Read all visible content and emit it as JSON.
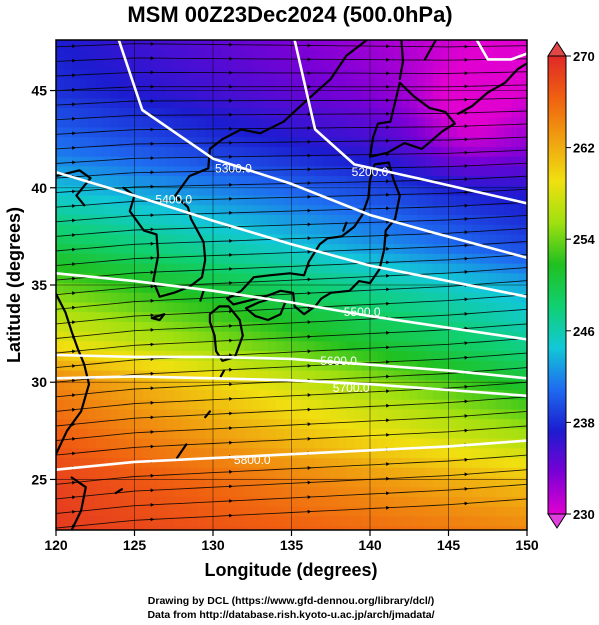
{
  "chart_data": {
    "type": "heatmap",
    "title": "MSM 00Z23Dec2024 (500.0hPa)",
    "xlabel": "Longitude (degrees)",
    "ylabel": "Latitude  (degrees)",
    "xlim": [
      120,
      150
    ],
    "ylim": [
      22.4,
      47.6
    ],
    "x_ticks": [
      "120",
      "125",
      "130",
      "135",
      "140",
      "145",
      "150"
    ],
    "y_ticks": [
      "25",
      "30",
      "35",
      "40",
      "45"
    ],
    "grid": true,
    "colorbar": {
      "min": 230,
      "max": 270,
      "ticks": [
        "230",
        "238",
        "246",
        "254",
        "262",
        "270"
      ],
      "colors": [
        "#e000d0",
        "#7a00d6",
        "#1c1cd0",
        "#1e6cf0",
        "#12c8d6",
        "#10d070",
        "#20c020",
        "#a0e010",
        "#f0e010",
        "#f0a010",
        "#f06010",
        "#e02828"
      ]
    },
    "temperature_field_rows": {
      "note_lat": [
        47.6,
        45,
        42,
        40,
        37,
        35,
        32,
        30,
        27,
        25,
        22.4
      ],
      "values_at_125": [
        236,
        237,
        240,
        243,
        248,
        252,
        257,
        262,
        265,
        267,
        268
      ],
      "values_at_145": [
        231,
        232,
        235,
        238,
        241,
        245,
        249,
        253,
        258,
        262,
        265
      ]
    },
    "contours": [
      {
        "label": "5200.0",
        "points": [
          [
            135.2,
            47.6
          ],
          [
            136.5,
            43
          ],
          [
            139,
            41.2
          ],
          [
            143,
            40.5
          ],
          [
            150,
            39.2
          ]
        ]
      },
      {
        "label": "5300.0",
        "points": [
          [
            124,
            47.6
          ],
          [
            125.5,
            44
          ],
          [
            130,
            41.5
          ],
          [
            135,
            40.2
          ],
          [
            140,
            38.6
          ],
          [
            144,
            37.7
          ],
          [
            150,
            36.4
          ]
        ]
      },
      {
        "label": "5400.0",
        "points": [
          [
            120,
            40.8
          ],
          [
            125,
            39.6
          ],
          [
            130,
            38.3
          ],
          [
            135,
            37.1
          ],
          [
            140,
            36
          ],
          [
            145,
            35.2
          ],
          [
            150,
            34.4
          ]
        ]
      },
      {
        "label": "5500.0",
        "points": [
          [
            120,
            35.6
          ],
          [
            125,
            35.2
          ],
          [
            130,
            34.7
          ],
          [
            135,
            34.1
          ],
          [
            140,
            33.4
          ],
          [
            145,
            32.8
          ],
          [
            150,
            32.2
          ]
        ]
      },
      {
        "label": "5600.0",
        "points": [
          [
            120,
            31.4
          ],
          [
            125,
            31.3
          ],
          [
            130,
            31.3
          ],
          [
            135,
            31.2
          ],
          [
            140,
            30.9
          ],
          [
            145,
            30.6
          ],
          [
            150,
            30.2
          ]
        ]
      },
      {
        "label": "5700.0",
        "points": [
          [
            120,
            30.2
          ],
          [
            125,
            30.3
          ],
          [
            130,
            30.2
          ],
          [
            135,
            30.1
          ],
          [
            140,
            29.9
          ],
          [
            145,
            29.6
          ],
          [
            150,
            29.3
          ]
        ]
      },
      {
        "label": "5800.0",
        "points": [
          [
            120,
            25.5
          ],
          [
            125,
            25.9
          ],
          [
            130,
            26.1
          ],
          [
            135,
            26.3
          ],
          [
            140,
            26.5
          ],
          [
            145,
            26.7
          ],
          [
            150,
            27
          ]
        ]
      },
      {
        "label": "",
        "points": [
          [
            146.8,
            47.6
          ],
          [
            147.5,
            46.6
          ],
          [
            149,
            46.6
          ],
          [
            150,
            46.9
          ]
        ]
      }
    ],
    "contour_labels": [
      {
        "text": "5200.0",
        "lon": 140,
        "lat": 40.8
      },
      {
        "text": "5300.0",
        "lon": 131.3,
        "lat": 41
      },
      {
        "text": "5400.0",
        "lon": 127.5,
        "lat": 39.4
      },
      {
        "text": "5500.0",
        "lon": 139.5,
        "lat": 33.6
      },
      {
        "text": "5600.0",
        "lon": 138,
        "lat": 31.1
      },
      {
        "text": "5700.0",
        "lon": 138.8,
        "lat": 29.7
      },
      {
        "text": "5800.0",
        "lon": 132.5,
        "lat": 26
      }
    ]
  },
  "credits": {
    "line1": "Drawing by DCL (https://www.gfd-dennou.org/library/dcl/)",
    "line2": "Data from http://database.rish.kyoto-u.ac.jp/arch/jmadata/"
  }
}
